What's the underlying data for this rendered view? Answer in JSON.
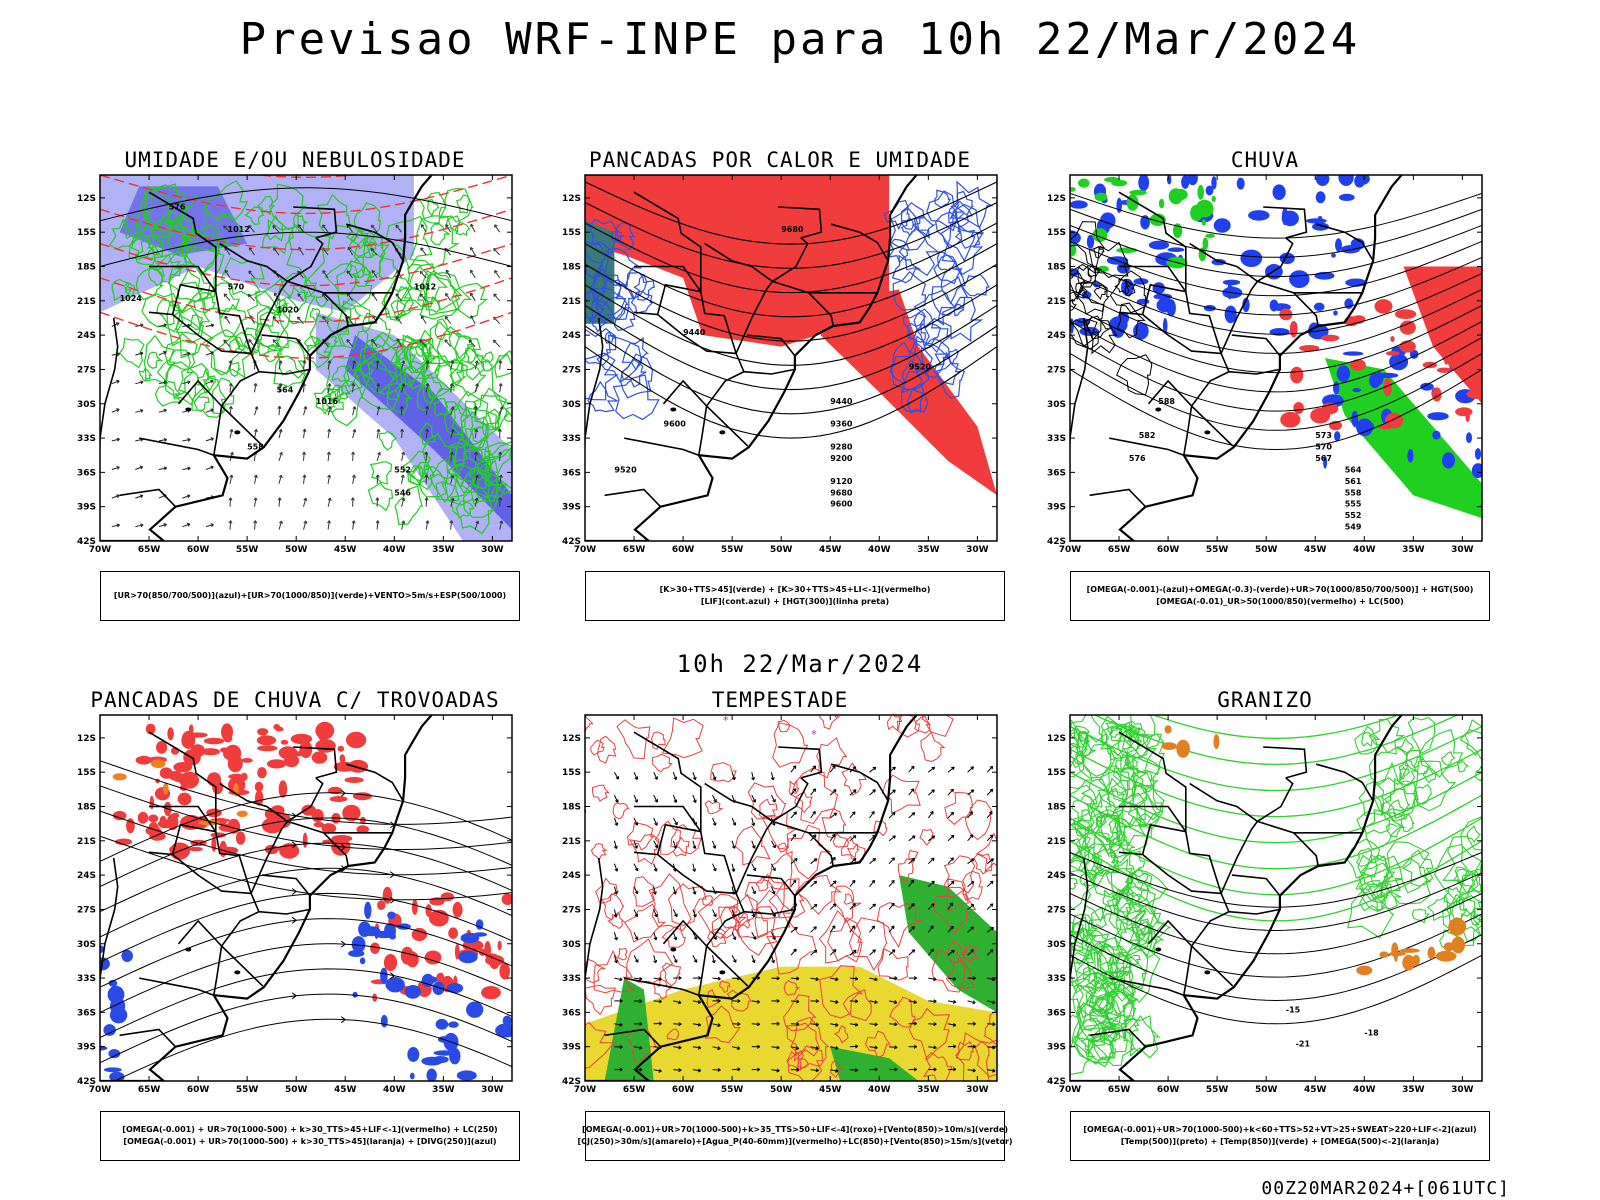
{
  "title": "Previsao WRF-INPE  para 10h 22/Mar/2024",
  "subtitle": "10h 22/Mar/2024",
  "footer": "00Z20MAR2024+[061UTC]",
  "lat_labels": [
    "12S",
    "15S",
    "18S",
    "21S",
    "24S",
    "27S",
    "30S",
    "33S",
    "36S",
    "39S",
    "42S"
  ],
  "lon_labels": [
    "70W",
    "65W",
    "60W",
    "55W",
    "50W",
    "45W",
    "40W",
    "35W",
    "30W"
  ],
  "panels": [
    {
      "title": "UMIDADE E/OU NEBULOSIDADE",
      "legend": [
        "[UR>70(850/700/500)](azul)+[UR>70(1000/850)](verde)+VENTO>5m/s+ESP(500/1000)"
      ],
      "contour_labels": [
        "1012",
        "1020",
        "1016",
        "1024",
        "1012",
        "576",
        "570",
        "564",
        "558",
        "552",
        "546"
      ],
      "colors": {
        "blue": "#a9a9f5",
        "darkblue": "#5a5ae6",
        "green": "#22cc22",
        "red": "#ee3333"
      }
    },
    {
      "title": "PANCADAS POR CALOR E UMIDADE",
      "legend": [
        "[K>30+TTS>45](verde) + [K>30+TTS>45+LI<-1](vermelho)",
        "[LIF](cont.azul) + [HGT(300)](linha preta)"
      ],
      "contour_labels": [
        "9680",
        "9600",
        "9520",
        "9440",
        "9360",
        "9280",
        "9200",
        "9120",
        "9680",
        "9600",
        "9520",
        "9440"
      ],
      "colors": {
        "red": "#f03c3c",
        "blue": "#3050e0",
        "teal": "#3a7a7a"
      }
    },
    {
      "title": "CHUVA",
      "legend": [
        "[OMEGA(-0.001)-(azul)+OMEGA(-0.3)-(verde)+UR>70(1000/850/700/500)] + HGT(500)",
        "[OMEGA(-0.01)_UR>50(1000/850)(vermelho) + LC(500)"
      ],
      "contour_labels": [
        "588",
        "582",
        "576",
        "573",
        "570",
        "567",
        "564",
        "561",
        "558",
        "555",
        "552",
        "549"
      ],
      "colors": {
        "blue": "#2040f0",
        "green": "#20d020",
        "red": "#f03c3c"
      }
    },
    {
      "title": "PANCADAS DE CHUVA C/ TROVOADAS",
      "legend": [
        "[OMEGA(-0.001) + UR>70(1000-500) + k>30_TTS>45+LIF<-1](vermelho) + LC(250)",
        "[OMEGA(-0.001) + UR>70(1000-500) + k>30_TTS>45](laranja) + [DIVG(250)](azul)"
      ],
      "contour_labels": [],
      "colors": {
        "red": "#f03c3c",
        "blue": "#2a4ae6",
        "orange": "#f08020"
      }
    },
    {
      "title": "TEMPESTADE",
      "legend": [
        "[OMEGA(-0.001)+UR>70(1000-500)+k>35_TTS>50+LIF<-4](roxo)+[Vento(850)>10m/s](verde)",
        "[CJ(250)>30m/s](amarelo)+[Agua_P(40-60mm)](vermelho)+LC(850)+[Vento(850)>15m/s](vetor)"
      ],
      "contour_labels": [],
      "colors": {
        "yellow": "#e8d830",
        "green": "#30b030",
        "red": "#e84040"
      }
    },
    {
      "title": "GRANIZO",
      "legend": [
        "[OMEGA(-0.001)+UR>70(1000-500)+k<60+TTS>52+VT>25+SWEAT>220+LIF<-2](azul)",
        "[Temp(500)](preto) + [Temp(850)](verde) + [OMEGA(500)<-2](laranja)"
      ],
      "contour_labels": [
        "-15",
        "-18",
        "-21"
      ],
      "colors": {
        "green": "#30d030",
        "orange": "#e08020"
      }
    }
  ]
}
